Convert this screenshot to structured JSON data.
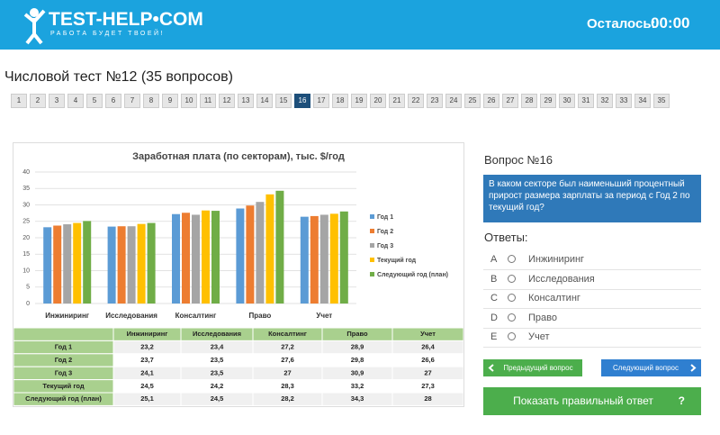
{
  "header": {
    "logo": "TEST-HELP•COM",
    "slogan": "РАБОТА БУДЕТ ТВОЕЙ!",
    "timer_label": "Осталось:",
    "timer": "00:00"
  },
  "test": {
    "title": "Числовой тест №12 (35 вопросов)",
    "pages": [
      "1",
      "2",
      "3",
      "4",
      "5",
      "6",
      "7",
      "8",
      "9",
      "10",
      "11",
      "12",
      "13",
      "14",
      "15",
      "16",
      "17",
      "18",
      "19",
      "20",
      "21",
      "22",
      "23",
      "24",
      "25",
      "26",
      "27",
      "28",
      "29",
      "30",
      "31",
      "32",
      "33",
      "34",
      "35"
    ],
    "current": "16"
  },
  "chart_data": {
    "type": "bar",
    "title": "Заработная плата (по секторам), тыс. $/год",
    "categories": [
      "Инжиниринг",
      "Исследования",
      "Консалтинг",
      "Право",
      "Учет"
    ],
    "series": [
      {
        "name": "Год 1",
        "color": "#5b9bd5",
        "values": [
          23.2,
          23.4,
          27.2,
          28.9,
          26.4
        ]
      },
      {
        "name": "Год 2",
        "color": "#ed7d31",
        "values": [
          23.7,
          23.5,
          27.6,
          29.8,
          26.6
        ]
      },
      {
        "name": "Год 3",
        "color": "#a5a5a5",
        "values": [
          24.1,
          23.5,
          27,
          30.9,
          27
        ]
      },
      {
        "name": "Текущий  год",
        "color": "#ffc000",
        "values": [
          24.5,
          24.2,
          28.3,
          33.2,
          27.3
        ]
      },
      {
        "name": "Следующий год (план)",
        "color": "#70ad47",
        "values": [
          25.1,
          24.5,
          28.2,
          34.3,
          28
        ]
      }
    ],
    "ylim": [
      0,
      40
    ],
    "yticks": [
      0,
      5,
      10,
      15,
      20,
      25,
      30,
      35,
      40
    ],
    "grid": true,
    "legend": "right"
  },
  "table": {
    "columns": [
      "Инжиниринг",
      "Исследования",
      "Консалтинг",
      "Право",
      "Учет"
    ],
    "rows": [
      {
        "label": "Год 1",
        "cells": [
          "23,2",
          "23,4",
          "27,2",
          "28,9",
          "26,4"
        ]
      },
      {
        "label": "Год 2",
        "cells": [
          "23,7",
          "23,5",
          "27,6",
          "29,8",
          "26,6"
        ]
      },
      {
        "label": "Год 3",
        "cells": [
          "24,1",
          "23,5",
          "27",
          "30,9",
          "27"
        ]
      },
      {
        "label": "Текущий год",
        "cells": [
          "24,5",
          "24,2",
          "28,3",
          "33,2",
          "27,3"
        ]
      },
      {
        "label": "Следующий год (план)",
        "cells": [
          "25,1",
          "24,5",
          "28,2",
          "34,3",
          "28"
        ]
      }
    ]
  },
  "question": {
    "title": "Вопрос №16",
    "text": "В каком секторе был наименьший процентный прирост размера зарплаты за период с Год 2 по текущий год?"
  },
  "answers_title": "Ответы:",
  "answers": [
    {
      "letter": "A",
      "text": "Инжиниринг"
    },
    {
      "letter": "B",
      "text": "Исследования"
    },
    {
      "letter": "C",
      "text": "Консалтинг"
    },
    {
      "letter": "D",
      "text": "Право"
    },
    {
      "letter": "E",
      "text": "Учет"
    }
  ],
  "buttons": {
    "prev": "Предыдущий вопрос",
    "next": "Следующий вопрос",
    "show": "Показать правильный ответ",
    "show_icon": "?"
  }
}
